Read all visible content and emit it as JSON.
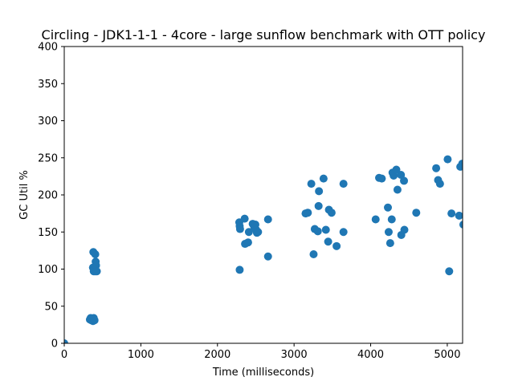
{
  "chart_data": {
    "type": "scatter",
    "title": "Circling - JDK1-1-1 - 4core -  large sunflow benchmark with OTT policy",
    "xlabel": "Time (milliseconds)",
    "ylabel": "GC Util %",
    "xlim": [
      0,
      5200
    ],
    "ylim": [
      0,
      400
    ],
    "xticks": [
      0,
      1000,
      2000,
      3000,
      4000,
      5000
    ],
    "yticks": [
      0,
      50,
      100,
      150,
      200,
      250,
      300,
      350,
      400
    ],
    "grid": false,
    "marker_color": "#1f77b4",
    "points": [
      {
        "x": 0,
        "y": 0
      },
      {
        "x": 335,
        "y": 32
      },
      {
        "x": 345,
        "y": 34
      },
      {
        "x": 355,
        "y": 31
      },
      {
        "x": 365,
        "y": 33
      },
      {
        "x": 375,
        "y": 30
      },
      {
        "x": 385,
        "y": 34
      },
      {
        "x": 395,
        "y": 31
      },
      {
        "x": 375,
        "y": 102
      },
      {
        "x": 385,
        "y": 97
      },
      {
        "x": 395,
        "y": 100
      },
      {
        "x": 405,
        "y": 97
      },
      {
        "x": 415,
        "y": 105
      },
      {
        "x": 425,
        "y": 97
      },
      {
        "x": 410,
        "y": 110
      },
      {
        "x": 380,
        "y": 123
      },
      {
        "x": 405,
        "y": 120
      },
      {
        "x": 2285,
        "y": 163
      },
      {
        "x": 2290,
        "y": 158
      },
      {
        "x": 2295,
        "y": 154
      },
      {
        "x": 2290,
        "y": 99
      },
      {
        "x": 2355,
        "y": 168
      },
      {
        "x": 2360,
        "y": 134
      },
      {
        "x": 2400,
        "y": 136
      },
      {
        "x": 2410,
        "y": 150
      },
      {
        "x": 2460,
        "y": 161
      },
      {
        "x": 2480,
        "y": 157
      },
      {
        "x": 2495,
        "y": 160
      },
      {
        "x": 2505,
        "y": 153
      },
      {
        "x": 2515,
        "y": 149
      },
      {
        "x": 2530,
        "y": 150
      },
      {
        "x": 2660,
        "y": 167
      },
      {
        "x": 2660,
        "y": 117
      },
      {
        "x": 3150,
        "y": 175
      },
      {
        "x": 3180,
        "y": 176
      },
      {
        "x": 3225,
        "y": 215
      },
      {
        "x": 3255,
        "y": 120
      },
      {
        "x": 3270,
        "y": 154
      },
      {
        "x": 3310,
        "y": 151
      },
      {
        "x": 3320,
        "y": 185
      },
      {
        "x": 3325,
        "y": 205
      },
      {
        "x": 3385,
        "y": 222
      },
      {
        "x": 3415,
        "y": 153
      },
      {
        "x": 3445,
        "y": 137
      },
      {
        "x": 3455,
        "y": 180
      },
      {
        "x": 3490,
        "y": 176
      },
      {
        "x": 3555,
        "y": 131
      },
      {
        "x": 3645,
        "y": 215
      },
      {
        "x": 3645,
        "y": 150
      },
      {
        "x": 4065,
        "y": 167
      },
      {
        "x": 4110,
        "y": 223
      },
      {
        "x": 4145,
        "y": 222
      },
      {
        "x": 4225,
        "y": 183
      },
      {
        "x": 4235,
        "y": 150
      },
      {
        "x": 4255,
        "y": 135
      },
      {
        "x": 4275,
        "y": 167
      },
      {
        "x": 4285,
        "y": 230
      },
      {
        "x": 4300,
        "y": 226
      },
      {
        "x": 4335,
        "y": 234
      },
      {
        "x": 4350,
        "y": 207
      },
      {
        "x": 4395,
        "y": 227
      },
      {
        "x": 4400,
        "y": 146
      },
      {
        "x": 4435,
        "y": 219
      },
      {
        "x": 4440,
        "y": 153
      },
      {
        "x": 4595,
        "y": 176
      },
      {
        "x": 4855,
        "y": 236
      },
      {
        "x": 4880,
        "y": 220
      },
      {
        "x": 4905,
        "y": 215
      },
      {
        "x": 5005,
        "y": 248
      },
      {
        "x": 5025,
        "y": 97
      },
      {
        "x": 5055,
        "y": 175
      },
      {
        "x": 5155,
        "y": 172
      },
      {
        "x": 5170,
        "y": 238
      },
      {
        "x": 5195,
        "y": 242
      },
      {
        "x": 5210,
        "y": 160
      }
    ]
  }
}
